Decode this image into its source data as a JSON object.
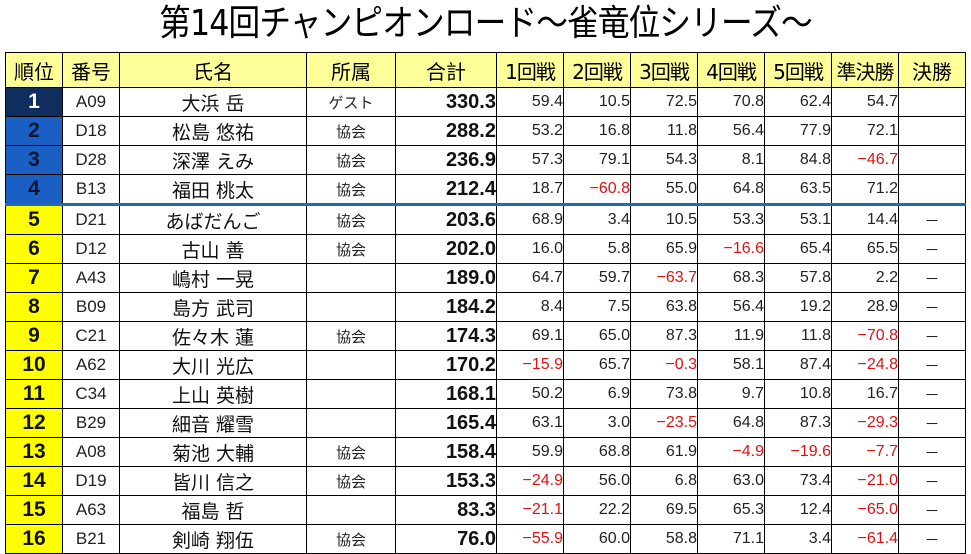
{
  "title": "第14回チャンピオンロード～雀竜位シリーズ～",
  "colors": {
    "header_bg": "#ffff99",
    "rank1_bg": "#0f2d5e",
    "rank_top_bg": "#1a5fc4",
    "rank_rest_bg": "#ffff00",
    "negative": "#e01010",
    "cutline": "#1f6ab8"
  },
  "table": {
    "headers": [
      "順位",
      "番号",
      "氏名",
      "所属",
      "合計",
      "1回戦",
      "2回戦",
      "3回戦",
      "4回戦",
      "5回戦",
      "準決勝",
      "決勝"
    ],
    "rows": [
      {
        "rank": "1",
        "id": "A09",
        "name": "大浜 岳",
        "affiliation": "ゲスト",
        "total": "330.3",
        "scores": [
          "59.4",
          "10.5",
          "72.5",
          "70.8",
          "62.4",
          "54.7"
        ],
        "final": ""
      },
      {
        "rank": "2",
        "id": "D18",
        "name": "松島 悠祐",
        "affiliation": "協会",
        "total": "288.2",
        "scores": [
          "53.2",
          "16.8",
          "11.8",
          "56.4",
          "77.9",
          "72.1"
        ],
        "final": ""
      },
      {
        "rank": "3",
        "id": "D28",
        "name": "深澤 えみ",
        "affiliation": "協会",
        "total": "236.9",
        "scores": [
          "57.3",
          "79.1",
          "54.3",
          "8.1",
          "84.8",
          "−46.7"
        ],
        "final": ""
      },
      {
        "rank": "4",
        "id": "B13",
        "name": "福田 桃太",
        "affiliation": "協会",
        "total": "212.4",
        "scores": [
          "18.7",
          "−60.8",
          "55.0",
          "64.8",
          "63.5",
          "71.2"
        ],
        "final": ""
      },
      {
        "rank": "5",
        "id": "D21",
        "name": "あばだんご",
        "affiliation": "協会",
        "total": "203.6",
        "scores": [
          "68.9",
          "3.4",
          "10.5",
          "53.3",
          "53.1",
          "14.4"
        ],
        "final": "－"
      },
      {
        "rank": "6",
        "id": "D12",
        "name": "古山 善",
        "affiliation": "協会",
        "total": "202.0",
        "scores": [
          "16.0",
          "5.8",
          "65.9",
          "−16.6",
          "65.4",
          "65.5"
        ],
        "final": "－"
      },
      {
        "rank": "7",
        "id": "A43",
        "name": "嶋村 一晃",
        "affiliation": "",
        "total": "189.0",
        "scores": [
          "64.7",
          "59.7",
          "−63.7",
          "68.3",
          "57.8",
          "2.2"
        ],
        "final": "－"
      },
      {
        "rank": "8",
        "id": "B09",
        "name": "島方 武司",
        "affiliation": "",
        "total": "184.2",
        "scores": [
          "8.4",
          "7.5",
          "63.8",
          "56.4",
          "19.2",
          "28.9"
        ],
        "final": "－"
      },
      {
        "rank": "9",
        "id": "C21",
        "name": "佐々木 蓮",
        "affiliation": "協会",
        "total": "174.3",
        "scores": [
          "69.1",
          "65.0",
          "87.3",
          "11.9",
          "11.8",
          "−70.8"
        ],
        "final": "－"
      },
      {
        "rank": "10",
        "id": "A62",
        "name": "大川 光広",
        "affiliation": "",
        "total": "170.2",
        "scores": [
          "−15.9",
          "65.7",
          "−0.3",
          "58.1",
          "87.4",
          "−24.8"
        ],
        "final": "－"
      },
      {
        "rank": "11",
        "id": "C34",
        "name": "上山 英樹",
        "affiliation": "",
        "total": "168.1",
        "scores": [
          "50.2",
          "6.9",
          "73.8",
          "9.7",
          "10.8",
          "16.7"
        ],
        "final": "－"
      },
      {
        "rank": "12",
        "id": "B29",
        "name": "細音 耀雪",
        "affiliation": "",
        "total": "165.4",
        "scores": [
          "63.1",
          "3.0",
          "−23.5",
          "64.8",
          "87.3",
          "−29.3"
        ],
        "final": "－"
      },
      {
        "rank": "13",
        "id": "A08",
        "name": "菊池 大輔",
        "affiliation": "協会",
        "total": "158.4",
        "scores": [
          "59.9",
          "68.8",
          "61.9",
          "−4.9",
          "−19.6",
          "−7.7"
        ],
        "final": "－"
      },
      {
        "rank": "14",
        "id": "D19",
        "name": "皆川 信之",
        "affiliation": "協会",
        "total": "153.3",
        "scores": [
          "−24.9",
          "56.0",
          "6.8",
          "63.0",
          "73.4",
          "−21.0"
        ],
        "final": "－"
      },
      {
        "rank": "15",
        "id": "A63",
        "name": "福島 哲",
        "affiliation": "",
        "total": "83.3",
        "scores": [
          "−21.1",
          "22.2",
          "69.5",
          "65.3",
          "12.4",
          "−65.0"
        ],
        "final": "－"
      },
      {
        "rank": "16",
        "id": "B21",
        "name": "剣崎 翔伍",
        "affiliation": "協会",
        "total": "76.0",
        "scores": [
          "−55.9",
          "60.0",
          "58.8",
          "71.1",
          "3.4",
          "−61.4"
        ],
        "final": "－"
      }
    ]
  }
}
